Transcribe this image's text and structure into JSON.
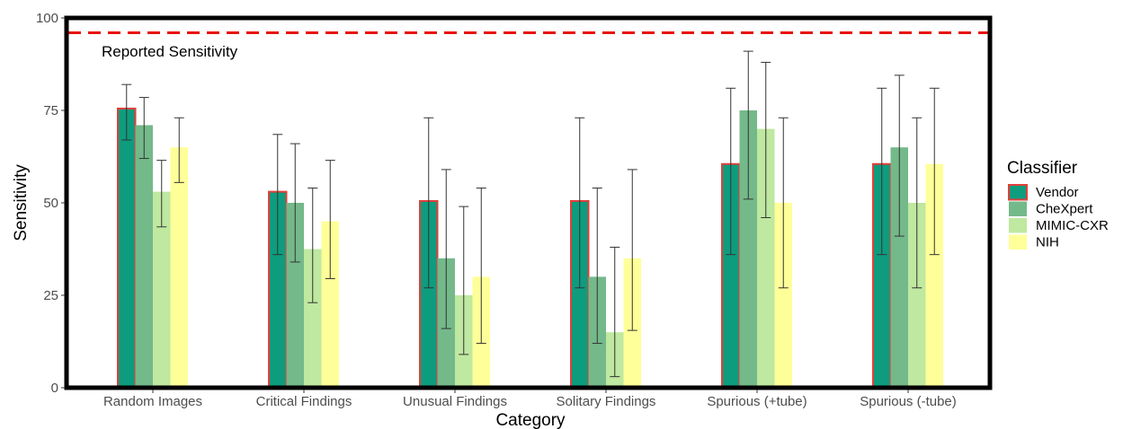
{
  "chart_data": {
    "type": "bar",
    "xlabel": "Category",
    "ylabel": "Sensitivity",
    "ylim": [
      0,
      100
    ],
    "yticks": [
      0,
      25,
      50,
      75,
      100
    ],
    "categories": [
      "Random Images",
      "Critical Findings",
      "Unusual Findings",
      "Solitary Findings",
      "Spurious (+tube)",
      "Spurious (-tube)"
    ],
    "series": [
      {
        "name": "Vendor",
        "color": "#0e9c7e",
        "outline": "#e0403a",
        "values": [
          75.5,
          53,
          50.5,
          50.5,
          60.5,
          60.5
        ],
        "error_low": [
          67,
          36,
          27,
          27,
          36,
          36
        ],
        "error_high": [
          82,
          68.5,
          73,
          73,
          81,
          81
        ]
      },
      {
        "name": "CheXpert",
        "color": "#74b98a",
        "outline": null,
        "values": [
          71,
          50,
          35,
          30,
          75,
          65
        ],
        "error_low": [
          62,
          34,
          16,
          12,
          51,
          41
        ],
        "error_high": [
          78.5,
          66,
          59,
          54,
          91,
          84.5
        ]
      },
      {
        "name": "MIMIC-CXR",
        "color": "#bfe8a0",
        "outline": null,
        "values": [
          53,
          37.5,
          25,
          15,
          70,
          50
        ],
        "error_low": [
          43.5,
          23,
          9,
          3,
          46,
          27
        ],
        "error_high": [
          61.5,
          54,
          49,
          38,
          88,
          73
        ]
      },
      {
        "name": "NIH",
        "color": "#ffff99",
        "outline": null,
        "values": [
          65,
          45,
          30,
          35,
          50,
          60.5
        ],
        "error_low": [
          55.5,
          29.5,
          12,
          15.5,
          27,
          36
        ],
        "error_high": [
          73,
          61.5,
          54,
          59,
          73,
          81
        ]
      }
    ],
    "reference_line": {
      "value": 96,
      "label": "Reported Sensitivity",
      "color": "#e8140c",
      "style": "dashed"
    },
    "legend": {
      "title": "Classifier",
      "position": "right"
    },
    "grid": false
  }
}
